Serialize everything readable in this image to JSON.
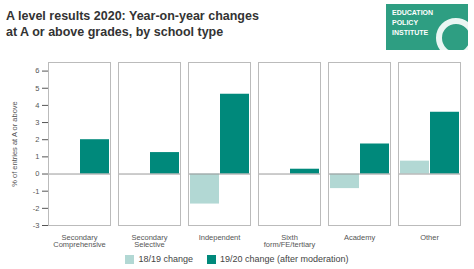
{
  "chart_data": {
    "type": "bar",
    "title": "A level results 2020: Year-on-year changes",
    "subtitle": "at A or above grades, by school type",
    "ylabel": "% of entries at A or above",
    "categories": [
      "Secondary\nComprehensive",
      "Secondary\nSelective",
      "Independent",
      "Sixth\nform/FE/tertiary",
      "Academy",
      "Other"
    ],
    "series": [
      {
        "name": "18/19 change",
        "color": "#b2d8d4",
        "values": [
          0.0,
          0.0,
          -1.75,
          0.0,
          -0.85,
          0.75
        ]
      },
      {
        "name": "19/20 change (after moderation)",
        "color": "#00897b",
        "values": [
          2.0,
          1.25,
          4.65,
          0.28,
          1.75,
          3.6
        ]
      }
    ],
    "ylim": [
      -3,
      6.5
    ],
    "yticks": [
      -3,
      -2,
      -1,
      0,
      1,
      2,
      3,
      4,
      5,
      6
    ],
    "grid": false,
    "legend": "bottom",
    "annotations": [
      "EDUCATION\nPOLICY\nINSTITUTE"
    ]
  }
}
